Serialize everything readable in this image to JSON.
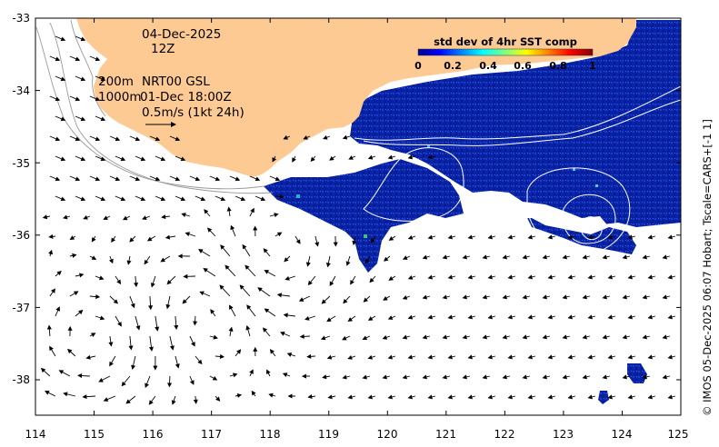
{
  "map": {
    "lon_range": [
      114,
      125
    ],
    "lat_range": [
      -38.5,
      -33
    ],
    "x_ticks": [
      "114",
      "115",
      "116",
      "117",
      "118",
      "119",
      "120",
      "121",
      "122",
      "123",
      "124",
      "125"
    ],
    "y_ticks": [
      "-33",
      "-34",
      "-35",
      "-36",
      "-37",
      "-38"
    ],
    "land_color": "#fdca94",
    "sst_color": "#0a22a6"
  },
  "annotations": {
    "date": "04-Dec-2025",
    "hour": "12Z",
    "contour_200": "200m",
    "contour_1000": "1000m",
    "product": "NRT00 GSL",
    "product_time": "01-Dec 18:00Z",
    "scale_label": "0.5m/s (1kt 24h)"
  },
  "colorbar": {
    "title": "std dev of 4hr SST comp",
    "ticks": [
      "0",
      "0.2",
      "0.4",
      "0.6",
      "0.8",
      "1"
    ]
  },
  "credit": "© IMOS 05-Dec-2025 06:07 Hobart; Tscale=CARS+[-1 1]"
}
